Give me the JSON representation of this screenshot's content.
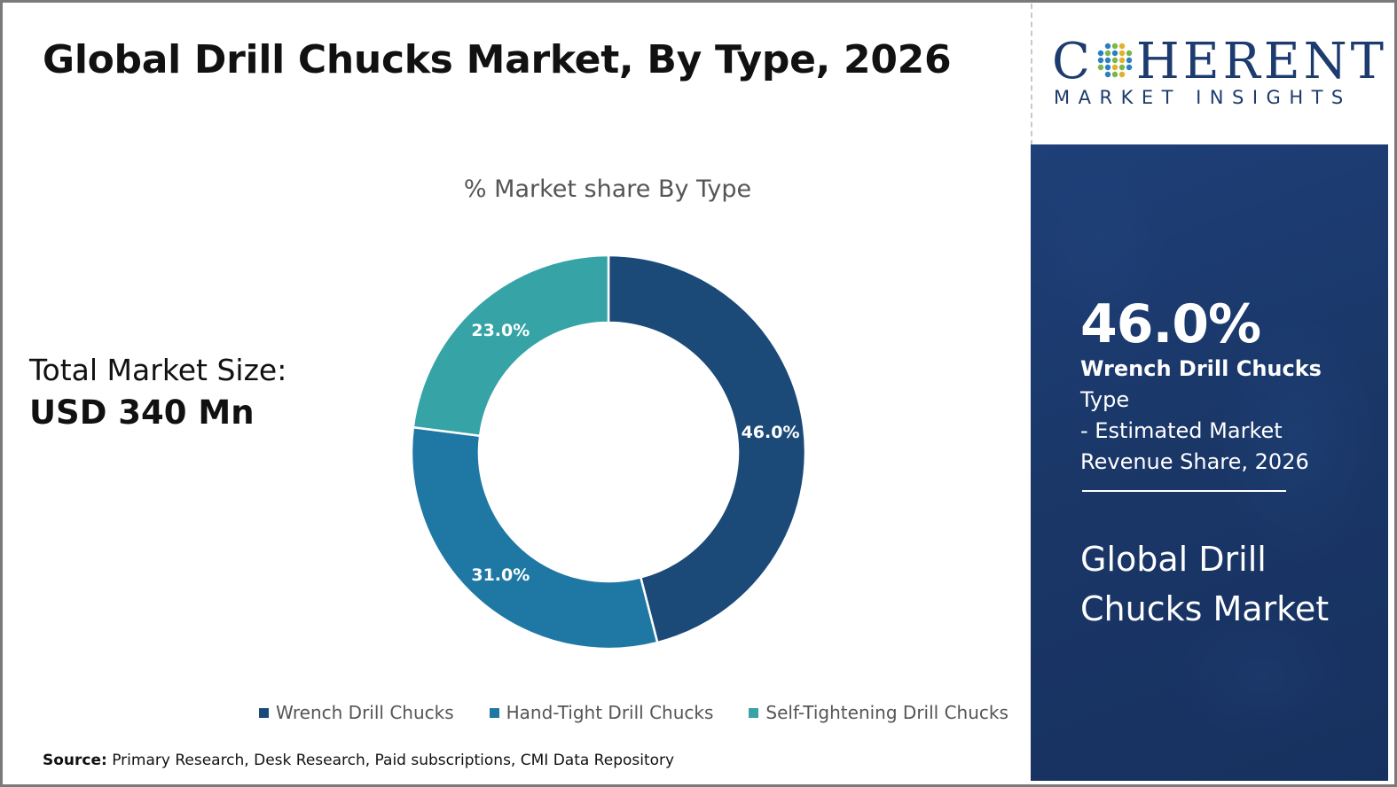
{
  "title": "Global Drill Chucks Market, By Type, 2026",
  "logo": {
    "word_left": "C",
    "word_right": "HERENT",
    "subtitle": "MARKET INSIGHTS"
  },
  "total": {
    "label": "Total Market Size:",
    "value": "USD 340 Mn"
  },
  "highlight": {
    "percent": "46.0%",
    "segment_bold": "Wrench Drill Chucks",
    "segment_rest": " Type",
    "line2": "- Estimated Market",
    "line3": "Revenue Share, 2026",
    "market_name": "Global Drill Chucks Market"
  },
  "source": {
    "label": "Source:",
    "text": " Primary Research, Desk Research, Paid subscriptions, CMI Data Repository"
  },
  "colors": {
    "wrench": "#1c4a78",
    "hand_tight": "#1f78a4",
    "self_tightening": "#36a3a6",
    "panel": "#1a3768",
    "logo_text": "#1c3b6e"
  },
  "chart_data": {
    "type": "pie",
    "title": "% Market share By Type",
    "categories": [
      "Wrench Drill Chucks",
      "Hand-Tight Drill Chucks",
      "Self-Tightening Drill Chucks"
    ],
    "values": [
      46.0,
      31.0,
      23.0
    ],
    "labels": [
      "46.0%",
      "31.0%",
      "23.0%"
    ],
    "legend": "bottom"
  }
}
